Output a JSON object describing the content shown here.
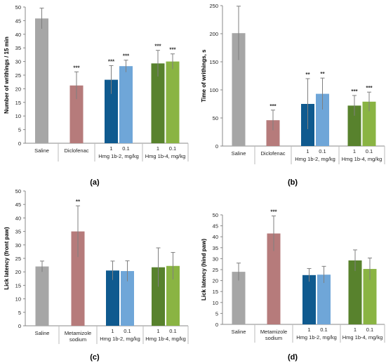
{
  "colors": {
    "saline": "#a6a6a6",
    "reference": "#b67b7b",
    "hmg_1b2_dose1": "#0f5a8f",
    "hmg_1b2_dose01": "#6fa6d8",
    "hmg_1b4_dose1": "#58822d",
    "hmg_1b4_dose01": "#8ab443",
    "axis": "#888888",
    "error": "#7f7f7f"
  },
  "chart_data": [
    {
      "panel": "(a)",
      "type": "bar",
      "ylabel": "Number of writhings / 15 min",
      "ylim": [
        0,
        50
      ],
      "yticks": [
        0,
        5,
        10,
        15,
        20,
        25,
        30,
        35,
        40,
        45,
        50
      ],
      "groups": [
        {
          "label": "Saline",
          "bars": [
            {
              "dose": "",
              "value": 45.8,
              "error": 3.8,
              "sig": "",
              "color": "saline"
            }
          ]
        },
        {
          "label": "Diclofenac",
          "bars": [
            {
              "dose": "",
              "value": 21.2,
              "error": 5.0,
              "sig": "***",
              "color": "reference"
            }
          ]
        },
        {
          "label": "Hmg 1b-2,  mg/kg",
          "bars": [
            {
              "dose": "1",
              "value": 23.3,
              "error": 5.2,
              "sig": "***",
              "color": "hmg_1b2_dose1"
            },
            {
              "dose": "0.1",
              "value": 28.3,
              "error": 2.2,
              "sig": "***",
              "color": "hmg_1b2_dose01"
            }
          ]
        },
        {
          "label": "Hmg 1b-4,  mg/kg",
          "bars": [
            {
              "dose": "1",
              "value": 29.3,
              "error": 4.8,
              "sig": "***",
              "color": "hmg_1b4_dose1"
            },
            {
              "dose": "0.1",
              "value": 30.0,
              "error": 2.8,
              "sig": "***",
              "color": "hmg_1b4_dose01"
            }
          ]
        }
      ]
    },
    {
      "panel": "(b)",
      "type": "bar",
      "ylabel": "Time of writhings, s",
      "ylim": [
        0,
        250
      ],
      "yticks": [
        0,
        50,
        100,
        150,
        200,
        250
      ],
      "groups": [
        {
          "label": "Saline",
          "bars": [
            {
              "dose": "",
              "value": 201,
              "error": 48,
              "sig": "",
              "color": "saline"
            }
          ]
        },
        {
          "label": "Diclofenac",
          "bars": [
            {
              "dose": "",
              "value": 46,
              "error": 18,
              "sig": "***",
              "color": "reference"
            }
          ]
        },
        {
          "label": "Hmg 1b-2,  mg/kg",
          "bars": [
            {
              "dose": "1",
              "value": 75,
              "error": 45,
              "sig": "**",
              "color": "hmg_1b2_dose1"
            },
            {
              "dose": "0.1",
              "value": 93,
              "error": 28,
              "sig": "**",
              "color": "hmg_1b2_dose01"
            }
          ]
        },
        {
          "label": "Hmg 1b-4,  mg/kg",
          "bars": [
            {
              "dose": "1",
              "value": 72,
              "error": 18,
              "sig": "***",
              "color": "hmg_1b4_dose1"
            },
            {
              "dose": "0.1",
              "value": 79,
              "error": 17,
              "sig": "***",
              "color": "hmg_1b4_dose01"
            }
          ]
        }
      ]
    },
    {
      "panel": "(c)",
      "type": "bar",
      "ylabel": "Lick latency (front paw)",
      "ylim": [
        0,
        50
      ],
      "yticks": [
        0,
        5,
        10,
        15,
        20,
        25,
        30,
        35,
        40,
        45,
        50
      ],
      "groups": [
        {
          "label": "Saline",
          "bars": [
            {
              "dose": "",
              "value": 22.0,
              "error": 2.0,
              "sig": "",
              "color": "saline"
            }
          ]
        },
        {
          "label": "Metamizole sodium",
          "bars": [
            {
              "dose": "",
              "value": 35.0,
              "error": 9.5,
              "sig": "**",
              "color": "reference"
            }
          ]
        },
        {
          "label": "Hmg 1b-2, mg/kg",
          "bars": [
            {
              "dose": "1",
              "value": 20.5,
              "error": 3.5,
              "sig": "",
              "color": "hmg_1b2_dose1"
            },
            {
              "dose": "0.1",
              "value": 20.3,
              "error": 3.8,
              "sig": "",
              "color": "hmg_1b2_dose01"
            }
          ]
        },
        {
          "label": "Hmg 1b-4, mg/kg",
          "bars": [
            {
              "dose": "1",
              "value": 21.7,
              "error": 7.2,
              "sig": "",
              "color": "hmg_1b4_dose1"
            },
            {
              "dose": "0.1",
              "value": 22.2,
              "error": 5.0,
              "sig": "",
              "color": "hmg_1b4_dose01"
            }
          ]
        }
      ]
    },
    {
      "panel": "(d)",
      "type": "bar",
      "ylabel": "Lick latency (hind paw)",
      "ylim": [
        0,
        50
      ],
      "yticks": [
        0,
        5,
        10,
        15,
        20,
        25,
        30,
        35,
        40,
        45,
        50
      ],
      "groups": [
        {
          "label": "Saline",
          "bars": [
            {
              "dose": "",
              "value": 24.0,
              "error": 4.0,
              "sig": "",
              "color": "saline"
            }
          ]
        },
        {
          "label": "Metamizole sodium",
          "bars": [
            {
              "dose": "",
              "value": 41.5,
              "error": 8.0,
              "sig": "***",
              "color": "reference"
            }
          ]
        },
        {
          "label": "Hmg 1b-2, mg/kg",
          "bars": [
            {
              "dose": "1",
              "value": 22.5,
              "error": 3.0,
              "sig": "",
              "color": "hmg_1b2_dose1"
            },
            {
              "dose": "0.1",
              "value": 22.7,
              "error": 3.8,
              "sig": "",
              "color": "hmg_1b2_dose01"
            }
          ]
        },
        {
          "label": "Hmg 1b-4, mg/kg",
          "bars": [
            {
              "dose": "1",
              "value": 29.2,
              "error": 4.8,
              "sig": "",
              "color": "hmg_1b4_dose1"
            },
            {
              "dose": "0.1",
              "value": 25.3,
              "error": 5.0,
              "sig": "",
              "color": "hmg_1b4_dose01"
            }
          ]
        }
      ]
    }
  ]
}
